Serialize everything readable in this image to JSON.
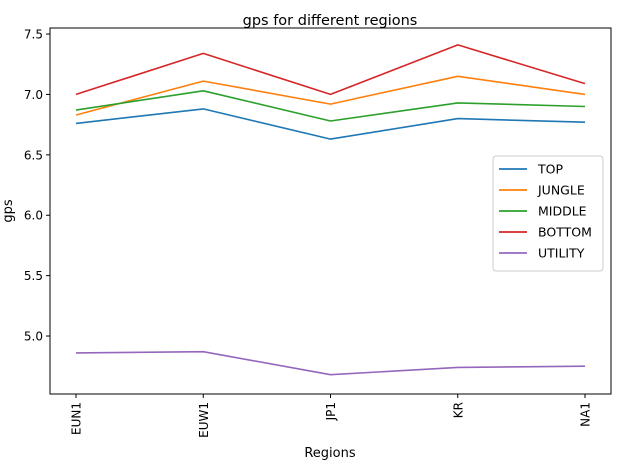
{
  "chart_data": {
    "type": "line",
    "title": "gps for different regions",
    "xlabel": "Regions",
    "ylabel": "gps",
    "categories": [
      "EUN1",
      "EUW1",
      "JP1",
      "KR",
      "NA1"
    ],
    "ylim": [
      4.52,
      7.55
    ],
    "yticks": [
      5.0,
      5.5,
      6.0,
      6.5,
      7.0,
      7.5
    ],
    "ytick_labels": [
      "5.0",
      "5.5",
      "6.0",
      "6.5",
      "7.0",
      "7.5"
    ],
    "legend_position": "center-right",
    "grid": false,
    "series": [
      {
        "name": "TOP",
        "color": "#1f77b4",
        "values": [
          6.76,
          6.88,
          6.63,
          6.8,
          6.77
        ]
      },
      {
        "name": "JUNGLE",
        "color": "#ff7f0e",
        "values": [
          6.83,
          7.11,
          6.92,
          7.15,
          7.0
        ]
      },
      {
        "name": "MIDDLE",
        "color": "#2ca02c",
        "values": [
          6.87,
          7.03,
          6.78,
          6.93,
          6.9
        ]
      },
      {
        "name": "BOTTOM",
        "color": "#d62728",
        "values": [
          7.0,
          7.34,
          7.0,
          7.41,
          7.09
        ]
      },
      {
        "name": "UTILITY",
        "color": "#9467bd",
        "values": [
          4.86,
          4.87,
          4.68,
          4.74,
          4.75
        ]
      }
    ]
  }
}
